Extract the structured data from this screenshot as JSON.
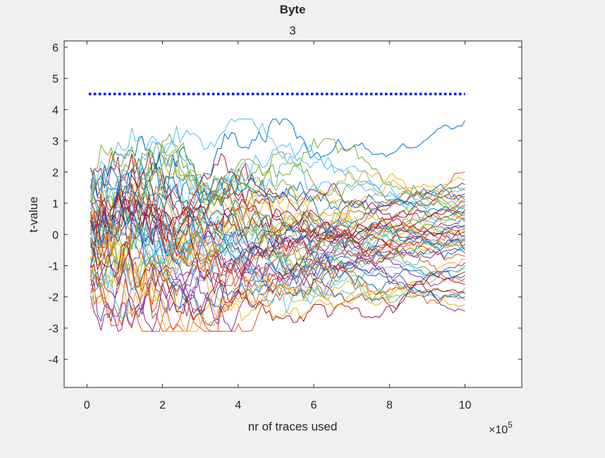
{
  "chart_data": {
    "type": "line",
    "title": "Byte",
    "subtitle": "3",
    "xlabel": "nr of traces used",
    "ylabel": "t-value",
    "x_exponent_base": "×10",
    "x_exponent_power": "5",
    "xlim": [
      -0.6,
      11.5
    ],
    "ylim": [
      -4.9,
      6.2
    ],
    "xticks": [
      0,
      2,
      4,
      6,
      8,
      10
    ],
    "yticks": [
      -4,
      -3,
      -2,
      -1,
      0,
      1,
      2,
      3,
      4,
      5,
      6
    ],
    "grid": false,
    "threshold": {
      "y": 4.5,
      "x_range": [
        0.05,
        10
      ],
      "color": "#0000ff",
      "style": "dotted"
    },
    "series_count": 56,
    "x_range": [
      0.1,
      10
    ],
    "palette": [
      "#0072bd",
      "#d95319",
      "#edb120",
      "#7e2f8e",
      "#77ac30",
      "#4dbeee",
      "#a2142f"
    ],
    "series_end_values": [
      3.65,
      2.0,
      1.75,
      1.6,
      1.5,
      1.4,
      1.3,
      1.2,
      1.1,
      1.0,
      0.95,
      0.9,
      0.85,
      0.8,
      0.7,
      0.6,
      0.55,
      0.5,
      0.45,
      0.4,
      0.3,
      0.25,
      0.2,
      0.15,
      0.1,
      0.05,
      0.0,
      -0.05,
      -0.1,
      -0.15,
      -0.2,
      -0.3,
      -0.35,
      -0.4,
      -0.5,
      -0.6,
      -0.7,
      -0.8,
      -0.9,
      -1.0,
      -1.1,
      -1.2,
      -1.3,
      -1.4,
      -1.5,
      -1.6,
      -1.7,
      -1.8,
      -1.9,
      -2.0,
      -2.1,
      -2.25,
      -2.45,
      0.65,
      -0.25,
      1.05
    ]
  }
}
